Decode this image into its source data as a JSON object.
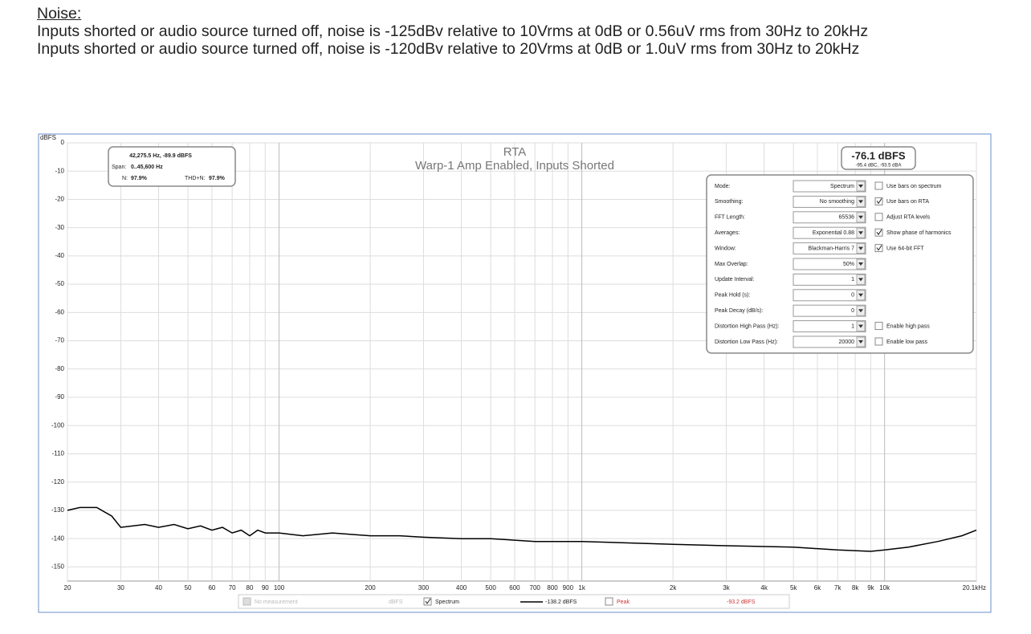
{
  "document": {
    "heading": "Noise:",
    "paragraphs": [
      "Inputs shorted or audio source turned off, noise is -125dBv relative to 10Vrms at 0dB or 0.56uV rms from 30Hz to 20kHz",
      "Inputs shorted or audio source turned off, noise is -120dBv relative to 20Vrms at 0dB or 1.0uV rms from 30Hz to 20kHz"
    ]
  },
  "chart_data": {
    "type": "line",
    "title": "RTA",
    "subtitle": "Warp-1 Amp Enabled, Inputs Shorted",
    "y_label": "dBFS",
    "x_log": true,
    "grid": true,
    "x": [
      20,
      22,
      25,
      28,
      30,
      33,
      36,
      40,
      45,
      50,
      55,
      60,
      65,
      70,
      75,
      80,
      85,
      90,
      100,
      120,
      150,
      200,
      250,
      300,
      400,
      500,
      700,
      1000,
      2000,
      3000,
      5000,
      7000,
      9000,
      10000,
      12000,
      15000,
      18000,
      20100
    ],
    "series": [
      {
        "name": "Spectrum",
        "color": "#000000",
        "values": [
          -130,
          -129,
          -129,
          -132,
          -136,
          -135.5,
          -135,
          -136,
          -135,
          -136.5,
          -135.5,
          -137,
          -136,
          -138,
          -137,
          -139,
          -137,
          -138,
          -138,
          -139,
          -138,
          -139,
          -139,
          -139.5,
          -140,
          -140,
          -141,
          -141,
          -142,
          -142.5,
          -143,
          -144,
          -144.5,
          -144,
          -143,
          -141,
          -139,
          -137
        ]
      }
    ],
    "xlim": [
      20,
      20100
    ],
    "ylim": [
      -155,
      0
    ],
    "xticks": [
      20,
      30,
      40,
      50,
      60,
      70,
      80,
      90,
      100,
      200,
      300,
      400,
      500,
      600,
      700,
      800,
      900,
      {
        "value": 1000,
        "label": "1k"
      },
      {
        "value": 2000,
        "label": "2k"
      },
      {
        "value": 3000,
        "label": "3k"
      },
      {
        "value": 4000,
        "label": "4k"
      },
      {
        "value": 5000,
        "label": "5k"
      },
      {
        "value": 6000,
        "label": "6k"
      },
      {
        "value": 7000,
        "label": "7k"
      },
      {
        "value": 8000,
        "label": "8k"
      },
      {
        "value": 9000,
        "label": "9k"
      },
      {
        "value": 10000,
        "label": "10k"
      },
      {
        "value": 20100,
        "label": "20.1kHz"
      }
    ],
    "yticks": [
      0,
      -10,
      -20,
      -30,
      -40,
      -50,
      -60,
      -70,
      -80,
      -90,
      -100,
      -110,
      -120,
      -130,
      -140,
      -150
    ],
    "cursor": {
      "position": "42,275.5 Hz, -89.9 dBFS",
      "span_label": "Span:",
      "span": "0..45,600 Hz",
      "n_label": "N:",
      "n": "97.9%",
      "thdn_label": "THD+N:",
      "thdn": "97.9%"
    },
    "level": {
      "main": "-76.1 dBFS",
      "sub": "-95.4 dBC, -93.5 dBA"
    },
    "panel": [
      {
        "label": "Mode:",
        "value": "Spectrum",
        "option": {
          "label": "Use bars on spectrum",
          "checked": false
        }
      },
      {
        "label": "Smoothing:",
        "value": "No smoothing",
        "option": {
          "label": "Use bars on RTA",
          "checked": true
        }
      },
      {
        "label": "FFT Length:",
        "value": "65536",
        "option": {
          "label": "Adjust RTA levels",
          "checked": false
        }
      },
      {
        "label": "Averages:",
        "value": "Exponential 0.88",
        "option": {
          "label": "Show phase of harmonics",
          "checked": true
        }
      },
      {
        "label": "Window:",
        "value": "Blackman-Harris 7",
        "option": {
          "label": "Use 64-bit FFT",
          "checked": true
        }
      },
      {
        "label": "Max Overlap:",
        "value": "50%"
      },
      {
        "label": "Update Interval:",
        "value": "1"
      },
      {
        "label": "Peak Hold (s):",
        "value": "0"
      },
      {
        "label": "Peak Decay (dB/s):",
        "value": "0"
      },
      {
        "label": "Distortion High Pass (Hz):",
        "value": "1",
        "option": {
          "label": "Enable high pass",
          "checked": false
        }
      },
      {
        "label": "Distortion Low Pass (Hz):",
        "value": "20000",
        "option": {
          "label": "Enable low pass",
          "checked": false
        }
      }
    ],
    "legend_bar": {
      "none": "No measurement",
      "unit": "dBFS",
      "spectrum_level": "-138.2 dBFS",
      "peak": "Peak",
      "peak_level": "-93.2 dBFS"
    }
  }
}
